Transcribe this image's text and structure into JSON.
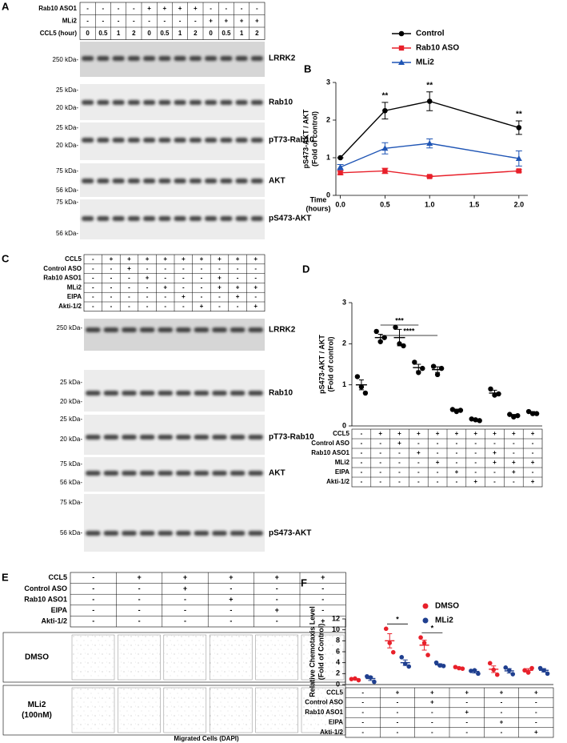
{
  "panel_a": {
    "label": "A",
    "conditions": [
      {
        "name": "Rab10 ASO1",
        "values": [
          "-",
          "-",
          "-",
          "-",
          "+",
          "+",
          "+",
          "+",
          "-",
          "-",
          "-",
          "-"
        ]
      },
      {
        "name": "MLi2",
        "values": [
          "-",
          "-",
          "-",
          "-",
          "-",
          "-",
          "-",
          "-",
          "+",
          "+",
          "+",
          "+"
        ]
      },
      {
        "name": "CCL5 (hour)",
        "values": [
          "0",
          "0.5",
          "1",
          "2",
          "0",
          "0.5",
          "1",
          "2",
          "0",
          "0.5",
          "1",
          "2"
        ]
      }
    ],
    "blots": [
      {
        "name": "LRRK2",
        "markers": [
          "250 kDa-"
        ]
      },
      {
        "name": "Rab10",
        "markers": [
          "25 kDa-",
          "20 kDa-"
        ]
      },
      {
        "name": "pT73-Rab10",
        "markers": [
          "25 kDa-",
          "20 kDa-"
        ]
      },
      {
        "name": "AKT",
        "markers": [
          "75 kDa-",
          "56 kDa-"
        ]
      },
      {
        "name": "pS473-AKT",
        "markers": [
          "75 kDa-",
          "56 kDa-"
        ]
      }
    ]
  },
  "panel_c": {
    "label": "C",
    "conditions": [
      {
        "name": "CCL5",
        "values": [
          "-",
          "+",
          "+",
          "+",
          "+",
          "+",
          "+",
          "+",
          "+",
          "+"
        ]
      },
      {
        "name": "Control ASO",
        "values": [
          "-",
          "-",
          "+",
          "-",
          "-",
          "-",
          "-",
          "-",
          "-",
          "-"
        ]
      },
      {
        "name": "Rab10 ASO1",
        "values": [
          "-",
          "-",
          "-",
          "+",
          "-",
          "-",
          "-",
          "+",
          "-",
          "-"
        ]
      },
      {
        "name": "MLi2",
        "values": [
          "-",
          "-",
          "-",
          "-",
          "+",
          "-",
          "-",
          "+",
          "+",
          "+"
        ]
      },
      {
        "name": "EIPA",
        "values": [
          "-",
          "-",
          "-",
          "-",
          "-",
          "+",
          "-",
          "-",
          "+",
          "-"
        ]
      },
      {
        "name": "Akti-1/2",
        "values": [
          "-",
          "-",
          "-",
          "-",
          "-",
          "-",
          "+",
          "-",
          "-",
          "+"
        ]
      }
    ],
    "blots": [
      {
        "name": "LRRK2",
        "markers": [
          "250 kDa-"
        ]
      },
      {
        "name": "Rab10",
        "markers": [
          "25 kDa-",
          "20 kDa-"
        ]
      },
      {
        "name": "pT73-Rab10",
        "markers": [
          "25 kDa-",
          "20 kDa-"
        ]
      },
      {
        "name": "AKT",
        "markers": [
          "75 kDa-",
          "56 kDa-"
        ]
      },
      {
        "name": "pS473-AKT",
        "markers": [
          "75 kDa-",
          "56 kDa-"
        ]
      }
    ]
  },
  "panel_e": {
    "label": "E",
    "conditions": [
      {
        "name": "CCL5",
        "values": [
          "-",
          "+",
          "+",
          "+",
          "+",
          "+"
        ]
      },
      {
        "name": "Control ASO",
        "values": [
          "-",
          "-",
          "+",
          "-",
          "-",
          "-"
        ]
      },
      {
        "name": "Rab10 ASO1",
        "values": [
          "-",
          "-",
          "-",
          "+",
          "-",
          "-"
        ]
      },
      {
        "name": "EIPA",
        "values": [
          "-",
          "-",
          "-",
          "-",
          "+",
          "-"
        ]
      },
      {
        "name": "Akti-1/2",
        "values": [
          "-",
          "-",
          "-",
          "-",
          "-",
          "+"
        ]
      }
    ],
    "image_rows": [
      [
        "DMSO"
      ],
      [
        "MLi2",
        "(100nM)"
      ]
    ],
    "caption": "Migrated Cells (DAPI)"
  },
  "chart_data": [
    {
      "type": "line",
      "panel_label": "B",
      "x": [
        0,
        0.5,
        1,
        2
      ],
      "series": [
        {
          "name": "Control",
          "color": "#000000",
          "marker": "circle",
          "values": [
            1,
            2.25,
            2.5,
            1.8
          ],
          "errors": [
            0,
            0.22,
            0.25,
            0.18
          ]
        },
        {
          "name": "Rab10 ASO",
          "color": "#e8202a",
          "marker": "square",
          "values": [
            0.6,
            0.65,
            0.5,
            0.65
          ],
          "errors": [
            0.05,
            0.07,
            0.03,
            0.03
          ]
        },
        {
          "name": "MLi2",
          "color": "#1f55b5",
          "marker": "triangle",
          "values": [
            0.75,
            1.25,
            1.38,
            0.98
          ],
          "errors": [
            0.07,
            0.15,
            0.12,
            0.2
          ]
        }
      ],
      "xlim": [
        -0.05,
        2.1
      ],
      "xticks": [
        {
          "value": 0,
          "label": "0.0"
        },
        {
          "value": 0.5,
          "label": "0.5"
        },
        {
          "value": 1,
          "label": "1.0"
        },
        {
          "value": 1.5,
          "label": "1.5"
        },
        {
          "value": 2,
          "label": "2.0"
        }
      ],
      "ylim": [
        0,
        3
      ],
      "yticks": [
        0,
        1,
        2,
        3
      ],
      "y_label": [
        "pS473-AKT / AKT",
        "(Fold of control)"
      ],
      "x_label": [
        "Time",
        "(hours)"
      ],
      "annotations": [
        {
          "text": "**",
          "x": 0.5
        },
        {
          "text": "**",
          "x": 1
        },
        {
          "text": "**",
          "x": 2
        }
      ],
      "legend": "top-right"
    },
    {
      "type": "dot",
      "panel_label": "D",
      "series": [
        {
          "color": "#000000",
          "points": [
            [
              1.2,
              0.95,
              0.8
            ],
            [
              2.3,
              2.05,
              2.15
            ],
            [
              2.4,
              2.0,
              1.95
            ],
            [
              1.55,
              1.3,
              1.4
            ],
            [
              1.45,
              1.25,
              1.4
            ],
            [
              0.4,
              0.35,
              0.38
            ],
            [
              0.17,
              0.15,
              0.13
            ],
            [
              0.9,
              0.75,
              0.78
            ],
            [
              0.28,
              0.22,
              0.25
            ],
            [
              0.35,
              0.3,
              0.3
            ]
          ],
          "values": [
            1.0,
            2.15,
            2.15,
            1.42,
            1.37,
            0.38,
            0.15,
            0.8,
            0.25,
            0.32
          ],
          "errors": [
            0.12,
            0.08,
            0.2,
            0.08,
            0.07,
            0.03,
            0.02,
            0.07,
            0.03,
            0.03
          ]
        }
      ],
      "ylim": [
        0,
        3
      ],
      "yticks": [
        0,
        1,
        2,
        3
      ],
      "y_label": [
        "pS473-AKT / AKT",
        "(Fold of control)"
      ],
      "annotations": [
        {
          "text": "***",
          "from": 1,
          "to": 3
        },
        {
          "text": "****",
          "from": 1,
          "to": 4
        }
      ],
      "conditions": [
        {
          "name": "CCL5",
          "values": [
            "-",
            "+",
            "+",
            "+",
            "+",
            "+",
            "+",
            "+",
            "+",
            "+"
          ]
        },
        {
          "name": "Control ASO",
          "values": [
            "-",
            "-",
            "+",
            "-",
            "-",
            "-",
            "-",
            "-",
            "-",
            "-"
          ]
        },
        {
          "name": "Rab10 ASO1",
          "values": [
            "-",
            "-",
            "-",
            "+",
            "-",
            "-",
            "-",
            "+",
            "-",
            "-"
          ]
        },
        {
          "name": "MLi2",
          "values": [
            "-",
            "-",
            "-",
            "-",
            "+",
            "-",
            "-",
            "+",
            "+",
            "+"
          ]
        },
        {
          "name": "EIPA",
          "values": [
            "-",
            "-",
            "-",
            "-",
            "-",
            "+",
            "-",
            "-",
            "+",
            "-"
          ]
        },
        {
          "name": "Akti-1/2",
          "values": [
            "-",
            "-",
            "-",
            "-",
            "-",
            "-",
            "+",
            "-",
            "-",
            "+"
          ]
        }
      ]
    },
    {
      "type": "dot",
      "panel_label": "F",
      "series": [
        {
          "name": "DMSO",
          "color": "#e8202a",
          "points": [
            [
              1.0,
              1.1,
              0.8
            ],
            [
              10.2,
              7.6,
              5.9
            ],
            [
              8.6,
              7.6,
              5.4
            ],
            [
              3.2,
              3.0,
              2.9
            ],
            [
              3.9,
              2.7,
              1.8
            ],
            [
              2.6,
              2.2,
              3.0
            ]
          ],
          "values": [
            1.0,
            8.0,
            7.2,
            3.1,
            2.8,
            2.6
          ],
          "errors": [
            0.1,
            1.3,
            0.9,
            0.1,
            0.6,
            0.3
          ]
        },
        {
          "name": "MLi2",
          "color": "#1f3f8f",
          "points": [
            [
              1.5,
              1.3,
              0.5
            ],
            [
              5.0,
              3.8,
              3.3
            ],
            [
              4.0,
              3.5,
              3.4
            ],
            [
              2.5,
              2.6,
              2.0
            ],
            [
              3.1,
              2.6,
              1.9
            ],
            [
              3.0,
              2.6,
              2.0
            ]
          ],
          "values": [
            1.1,
            4.0,
            3.6,
            2.4,
            2.5,
            2.6
          ],
          "errors": [
            0.35,
            0.5,
            0.2,
            0.3,
            0.4,
            0.3
          ]
        }
      ],
      "ylim": [
        0,
        12
      ],
      "yticks": [
        0,
        2,
        4,
        6,
        8,
        10,
        12
      ],
      "y_label": [
        "Relative Chemotaxis Level",
        "(Fold of Control)"
      ],
      "annotations": [
        {
          "text": "*",
          "index": 1
        },
        {
          "text": "*",
          "index": 2
        }
      ],
      "legend": "top-right",
      "conditions": [
        {
          "name": "CCL5",
          "values": [
            "-",
            "+",
            "+",
            "+",
            "+",
            "+"
          ]
        },
        {
          "name": "Control ASO",
          "values": [
            "-",
            "-",
            "+",
            "-",
            "-",
            "-"
          ]
        },
        {
          "name": "Rab10 ASO1",
          "values": [
            "-",
            "-",
            "-",
            "+",
            "-",
            "-"
          ]
        },
        {
          "name": "EIPA",
          "values": [
            "-",
            "-",
            "-",
            "-",
            "+",
            "-"
          ]
        },
        {
          "name": "Akti-1/2",
          "values": [
            "-",
            "-",
            "-",
            "-",
            "-",
            "+"
          ]
        }
      ]
    }
  ]
}
